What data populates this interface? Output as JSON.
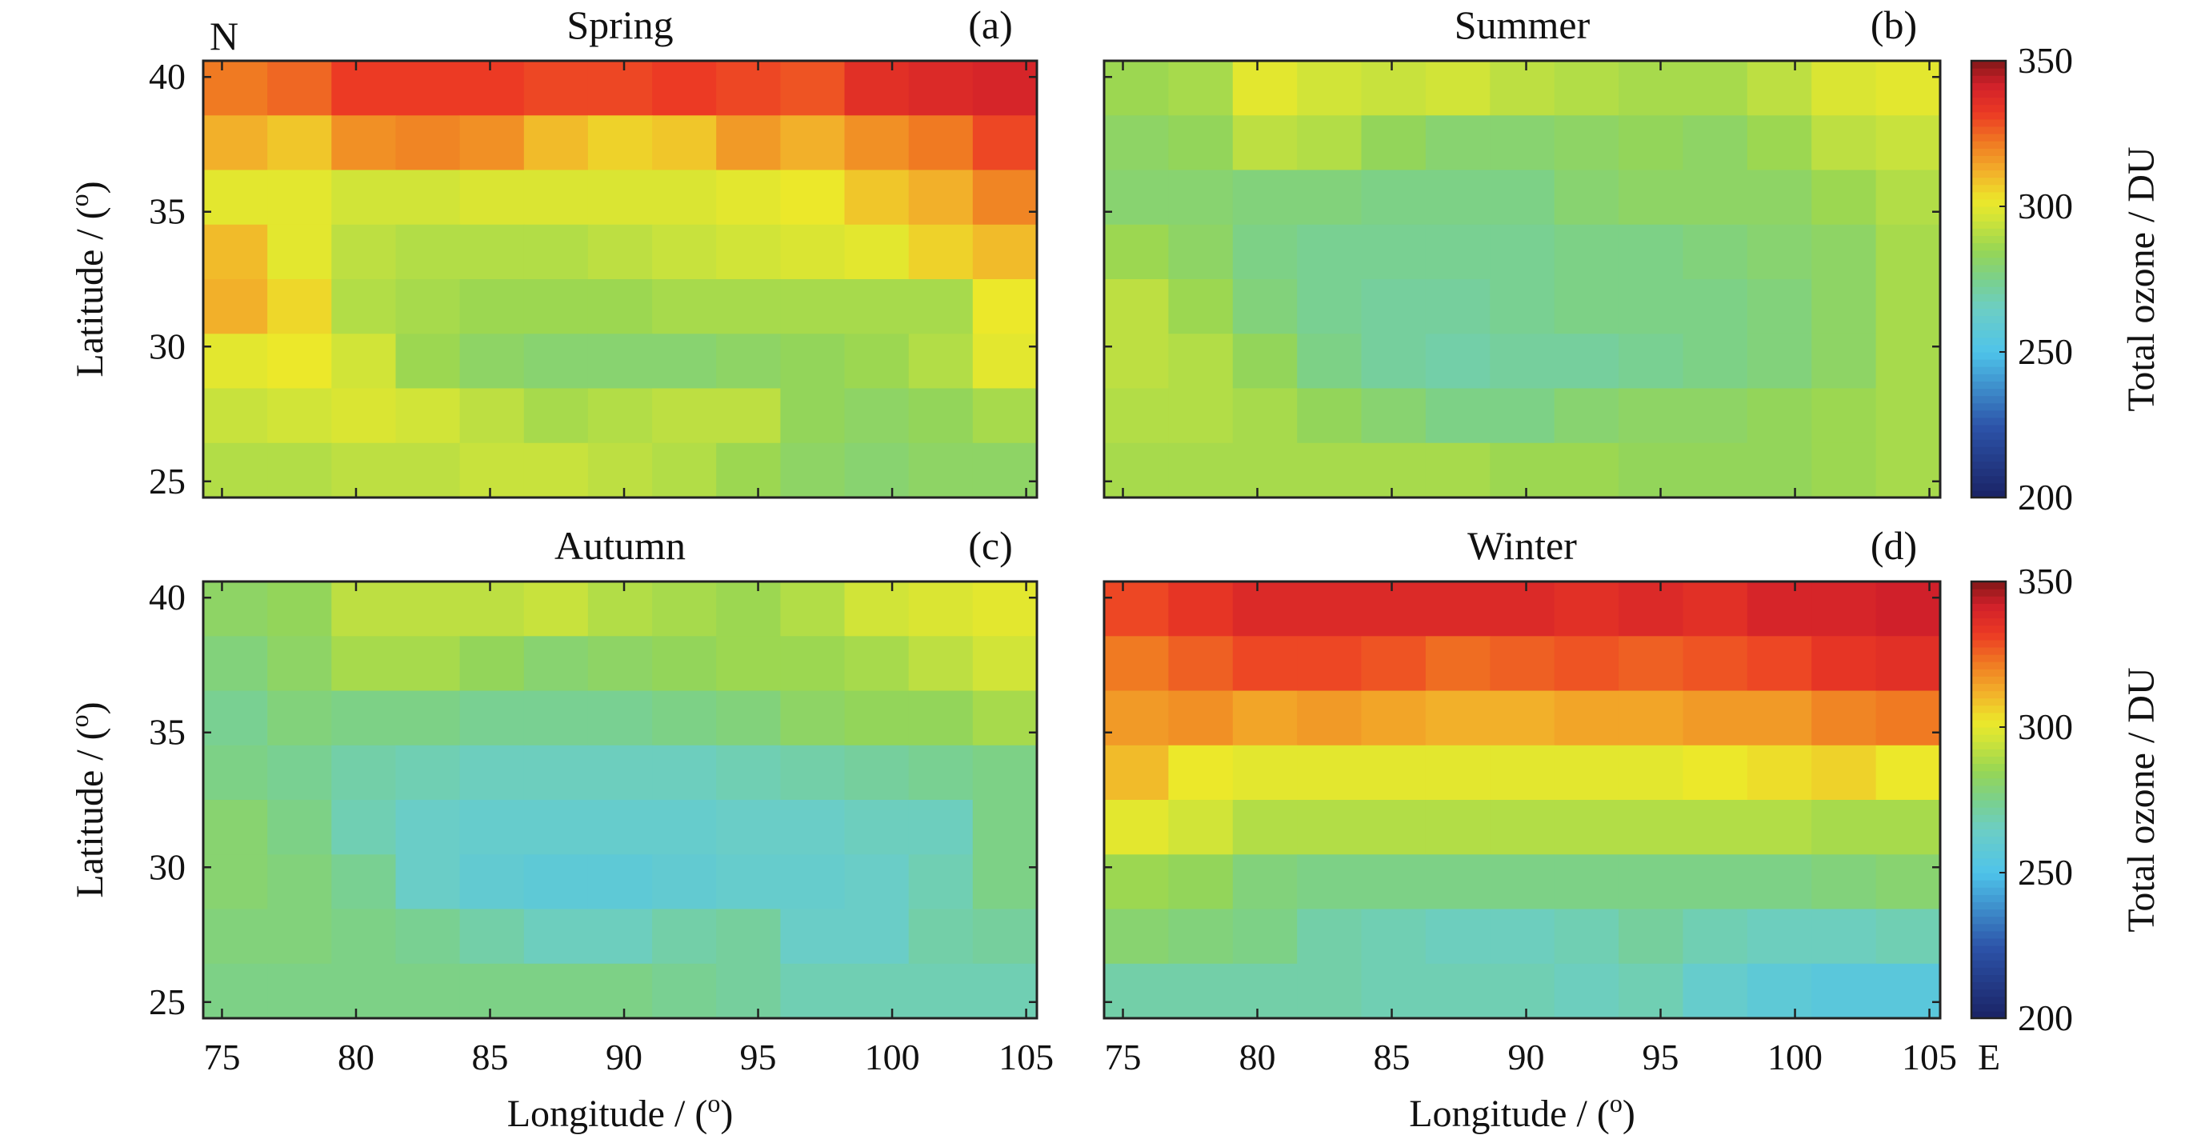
{
  "chart_data": {
    "type": "heatmap",
    "figure_annotations": {
      "north_label": "N",
      "east_label": "E"
    },
    "xlabel": "Longitude / (",
    "xlabel_sup": "o",
    "xlabel_end": ")",
    "ylabel": "Latitude / (",
    "ylabel_sup": "o",
    "ylabel_end": ")",
    "xlim": [
      74.3,
      105.4
    ],
    "ylim": [
      24.4,
      40.6
    ],
    "xticks": [
      75,
      80,
      85,
      90,
      95,
      100,
      105
    ],
    "yticks": [
      25,
      30,
      35,
      40
    ],
    "lon": [
      75,
      77.5,
      80,
      82.5,
      85,
      87.5,
      90,
      92.5,
      95,
      97.5,
      100,
      102.5,
      105
    ],
    "lat": [
      39.5,
      37.5,
      35.5,
      33.5,
      31.5,
      29.5,
      27.5,
      25.5
    ],
    "colorbar": {
      "label": "Total ozone / DU",
      "range": [
        200,
        350
      ],
      "ticks": [
        200,
        250,
        300,
        350
      ]
    },
    "panels": [
      {
        "title": "Spring",
        "tag": "(a)",
        "values": [
          [
            322,
            325,
            332,
            332,
            332,
            330,
            330,
            332,
            330,
            328,
            336,
            338,
            340
          ],
          [
            312,
            308,
            318,
            320,
            318,
            310,
            306,
            308,
            316,
            312,
            318,
            322,
            330
          ],
          [
            300,
            300,
            296,
            296,
            298,
            298,
            298,
            298,
            300,
            302,
            308,
            312,
            320
          ],
          [
            310,
            300,
            292,
            290,
            290,
            290,
            292,
            294,
            296,
            298,
            300,
            306,
            310
          ],
          [
            312,
            305,
            290,
            288,
            286,
            286,
            286,
            288,
            288,
            288,
            288,
            288,
            302
          ],
          [
            300,
            302,
            296,
            286,
            282,
            280,
            280,
            280,
            282,
            284,
            286,
            290,
            300
          ],
          [
            294,
            296,
            298,
            296,
            292,
            288,
            290,
            292,
            292,
            284,
            282,
            284,
            288
          ],
          [
            290,
            290,
            292,
            292,
            294,
            294,
            292,
            290,
            286,
            282,
            280,
            282,
            282
          ]
        ]
      },
      {
        "title": "Summer",
        "tag": "(b)",
        "values": [
          [
            286,
            288,
            300,
            296,
            294,
            296,
            292,
            290,
            288,
            288,
            292,
            298,
            300
          ],
          [
            282,
            284,
            292,
            290,
            284,
            280,
            280,
            282,
            284,
            282,
            286,
            292,
            294
          ],
          [
            280,
            280,
            278,
            278,
            276,
            276,
            276,
            280,
            282,
            282,
            282,
            286,
            290
          ],
          [
            286,
            282,
            276,
            274,
            274,
            274,
            274,
            276,
            276,
            278,
            280,
            282,
            288
          ],
          [
            292,
            286,
            278,
            274,
            272,
            272,
            274,
            276,
            276,
            276,
            278,
            282,
            288
          ],
          [
            292,
            290,
            284,
            276,
            272,
            270,
            272,
            272,
            274,
            276,
            278,
            282,
            288
          ],
          [
            290,
            290,
            288,
            284,
            280,
            276,
            276,
            280,
            282,
            282,
            284,
            286,
            288
          ],
          [
            288,
            288,
            288,
            288,
            288,
            288,
            286,
            286,
            284,
            284,
            284,
            286,
            288
          ]
        ]
      },
      {
        "title": "Autumn",
        "tag": "(c)",
        "values": [
          [
            282,
            284,
            292,
            292,
            292,
            294,
            290,
            288,
            286,
            290,
            296,
            298,
            300
          ],
          [
            278,
            282,
            288,
            288,
            284,
            280,
            282,
            284,
            286,
            286,
            288,
            292,
            296
          ],
          [
            274,
            278,
            276,
            276,
            274,
            274,
            274,
            276,
            278,
            282,
            284,
            284,
            288
          ],
          [
            276,
            274,
            270,
            268,
            266,
            266,
            266,
            266,
            268,
            270,
            272,
            274,
            276
          ],
          [
            280,
            276,
            268,
            264,
            262,
            262,
            262,
            262,
            264,
            264,
            266,
            266,
            276
          ],
          [
            280,
            278,
            274,
            264,
            260,
            258,
            258,
            260,
            262,
            262,
            264,
            268,
            276
          ],
          [
            278,
            278,
            276,
            274,
            270,
            266,
            266,
            270,
            272,
            264,
            264,
            270,
            272
          ],
          [
            276,
            276,
            276,
            276,
            276,
            276,
            276,
            274,
            272,
            268,
            268,
            268,
            268
          ]
        ]
      },
      {
        "title": "Winter",
        "tag": "(d)",
        "values": [
          [
            330,
            334,
            338,
            338,
            338,
            338,
            338,
            336,
            338,
            336,
            340,
            340,
            342
          ],
          [
            322,
            326,
            330,
            330,
            328,
            324,
            326,
            328,
            326,
            328,
            330,
            334,
            336
          ],
          [
            316,
            318,
            314,
            316,
            314,
            312,
            312,
            314,
            314,
            316,
            316,
            320,
            322
          ],
          [
            310,
            302,
            300,
            300,
            300,
            300,
            300,
            300,
            300,
            302,
            304,
            306,
            302
          ],
          [
            300,
            296,
            290,
            290,
            290,
            290,
            290,
            290,
            290,
            290,
            290,
            288,
            288
          ],
          [
            286,
            284,
            278,
            276,
            276,
            276,
            276,
            276,
            276,
            276,
            276,
            278,
            280
          ],
          [
            280,
            278,
            276,
            270,
            268,
            266,
            266,
            268,
            272,
            268,
            266,
            266,
            268
          ],
          [
            270,
            270,
            270,
            270,
            268,
            268,
            268,
            266,
            268,
            262,
            258,
            256,
            256
          ]
        ]
      }
    ]
  }
}
